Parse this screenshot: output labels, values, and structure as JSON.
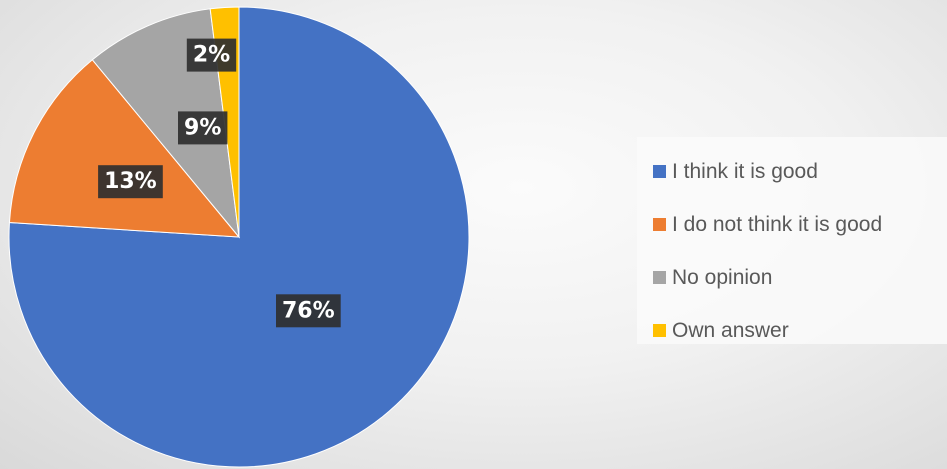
{
  "chart_data": {
    "type": "pie",
    "title": "",
    "legend_position": "right",
    "start_angle_deg": 0,
    "direction": "clockwise",
    "slices": [
      {
        "label": "I think it is good",
        "value": 76,
        "display": "76%",
        "color": "#4472C4"
      },
      {
        "label": "I do not think it is good",
        "value": 13,
        "display": "13%",
        "color": "#ED7D31"
      },
      {
        "label": "No opinion",
        "value": 9,
        "display": "9%",
        "color": "#A5A5A5"
      },
      {
        "label": "Own answer",
        "value": 2,
        "display": "2%",
        "color": "#FFC000"
      }
    ]
  }
}
